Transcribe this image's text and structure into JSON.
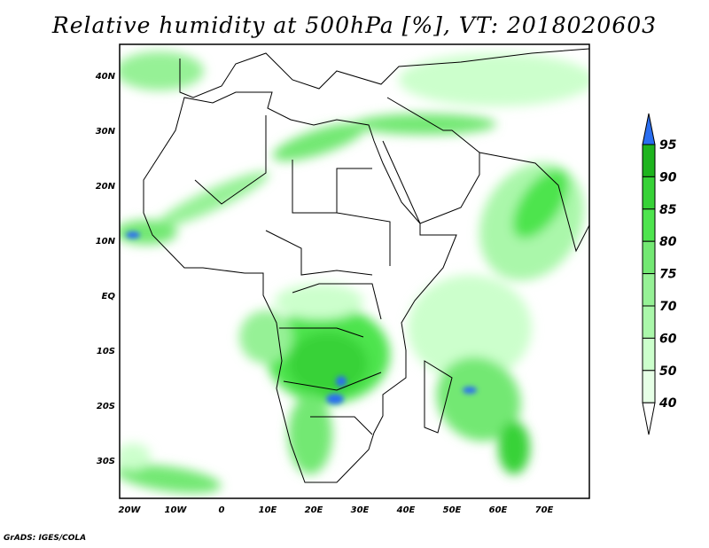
{
  "title": "Relative humidity at 500hPa [%], VT: 2018020603",
  "lon_labels": [
    "20W",
    "10W",
    "0",
    "10E",
    "20E",
    "30E",
    "40E",
    "50E",
    "60E",
    "70E"
  ],
  "lat_labels": [
    "40N",
    "30N",
    "20N",
    "10N",
    "EQ",
    "10S",
    "20S",
    "30S"
  ],
  "colorbar": {
    "levels": [
      "40",
      "50",
      "60",
      "70",
      "75",
      "80",
      "85",
      "90",
      "95"
    ],
    "colors": [
      "#ffffff",
      "#e6ffe6",
      "#ccffcc",
      "#aaf7aa",
      "#96f196",
      "#73e873",
      "#4ee44e",
      "#37d237",
      "#1eb41e",
      "#2a6ef0"
    ]
  },
  "footer": "GrADS: IGES/COLA"
}
